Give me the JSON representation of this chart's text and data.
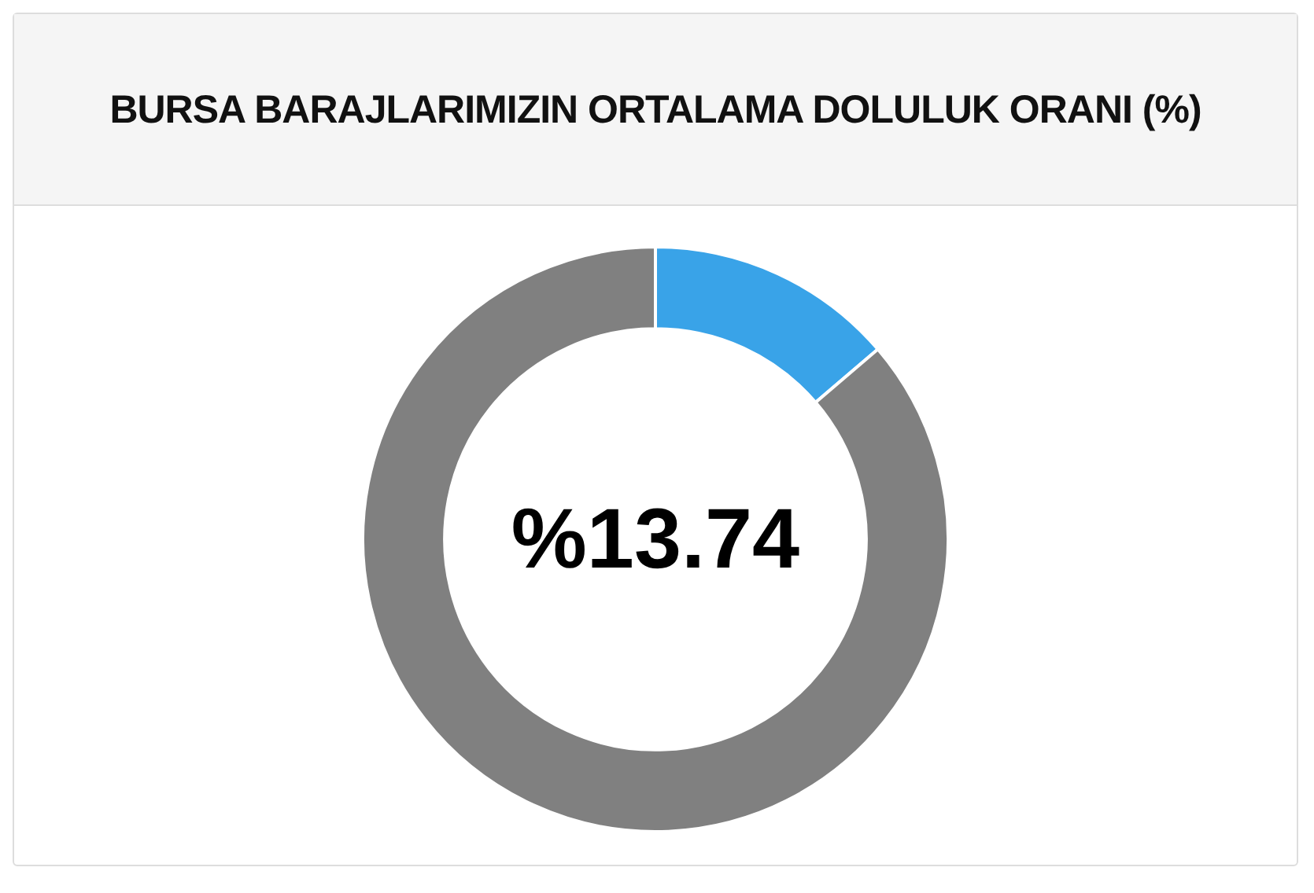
{
  "chart_data": {
    "type": "donut",
    "title": "BURSA BARAJLARIMIZIN ORTALAMA DOLULUK ORANI (%)",
    "categories": [
      null,
      null
    ],
    "values": [
      13.74,
      86.26
    ],
    "colors": [
      "#39a3e8",
      "#808080"
    ],
    "value_labels": [
      "%13.74",
      null
    ]
  }
}
